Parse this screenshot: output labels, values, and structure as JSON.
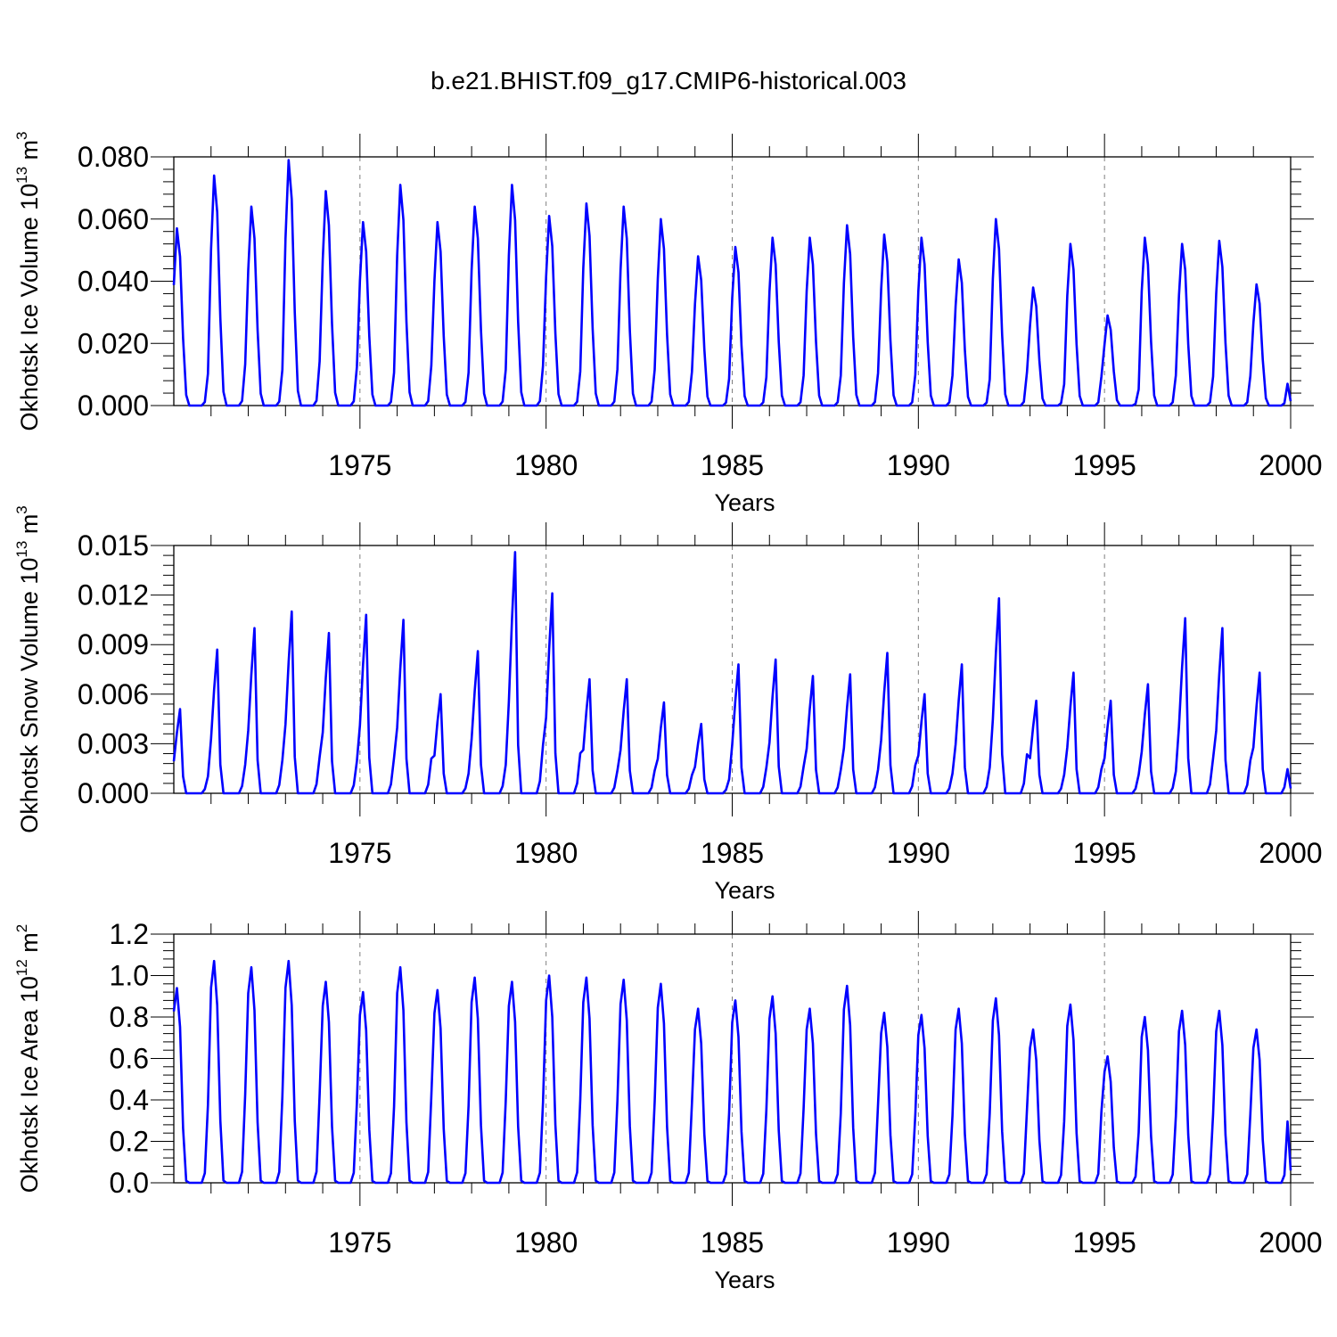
{
  "title": "b.e21.BHIST.f09_g17.CMIP6-historical.003",
  "colors": {
    "series": "#0000ff",
    "axis": "#000000",
    "grid": "#808080"
  },
  "chart_data": [
    {
      "type": "line",
      "ylabel_main": "Okhotsk Ice Volume 10",
      "ylabel_exp": "13",
      "ylabel_unit": " m",
      "ylabel_unit_exp": "3",
      "xlabel": "Years",
      "xlim": [
        1970,
        2000
      ],
      "ylim": [
        0,
        0.08
      ],
      "yticks": [
        0,
        0.02,
        0.04,
        0.06,
        0.08
      ],
      "ytick_labels": [
        "0.000",
        "0.020",
        "0.040",
        "0.060",
        "0.080"
      ],
      "xticks": [
        1975,
        1980,
        1985,
        1990,
        1995,
        2000
      ],
      "xtick_labels": [
        "1975",
        "1980",
        "1985",
        "1990",
        "1995",
        "2000"
      ],
      "start_year": 1970,
      "annual_peaks": [
        0.057,
        0.074,
        0.064,
        0.079,
        0.069,
        0.059,
        0.071,
        0.059,
        0.064,
        0.071,
        0.061,
        0.065,
        0.064,
        0.06,
        0.048,
        0.051,
        0.054,
        0.054,
        0.058,
        0.055,
        0.054,
        0.047,
        0.06,
        0.038,
        0.052,
        0.029,
        0.054,
        0.052,
        0.053,
        0.039
      ],
      "monthly_shape": [
        0.68,
        1.0,
        0.84,
        0.38,
        0.06,
        0.0,
        0.0,
        0.0,
        0.0,
        0.0,
        0.02,
        0.18
      ]
    },
    {
      "type": "line",
      "ylabel_main": "Okhotsk Snow Volume 10",
      "ylabel_exp": "13",
      "ylabel_unit": " m",
      "ylabel_unit_exp": "3",
      "xlabel": "Years",
      "xlim": [
        1970,
        2000
      ],
      "ylim": [
        0,
        0.015
      ],
      "yticks": [
        0,
        0.003,
        0.006,
        0.009,
        0.012,
        0.015
      ],
      "ytick_labels": [
        "0.000",
        "0.003",
        "0.006",
        "0.009",
        "0.012",
        "0.015"
      ],
      "xticks": [
        1975,
        1980,
        1985,
        1990,
        1995,
        2000
      ],
      "xtick_labels": [
        "1975",
        "1980",
        "1985",
        "1990",
        "1995",
        "2000"
      ],
      "start_year": 1970,
      "annual_peaks": [
        0.0051,
        0.0087,
        0.01,
        0.011,
        0.0097,
        0.0108,
        0.0105,
        0.006,
        0.0086,
        0.0146,
        0.0121,
        0.0069,
        0.0069,
        0.0055,
        0.0042,
        0.0078,
        0.0081,
        0.0071,
        0.0072,
        0.0085,
        0.006,
        0.0078,
        0.0118,
        0.0056,
        0.0073,
        0.0056,
        0.0066,
        0.0106,
        0.01,
        0.0073
      ],
      "monthly_shape": [
        0.38,
        0.72,
        1.0,
        0.2,
        0.0,
        0.0,
        0.0,
        0.0,
        0.0,
        0.0,
        0.05,
        0.2
      ]
    },
    {
      "type": "line",
      "ylabel_main": "Okhotsk Ice Area 10",
      "ylabel_exp": "12",
      "ylabel_unit": " m",
      "ylabel_unit_exp": "2",
      "xlabel": "Years",
      "xlim": [
        1970,
        2000
      ],
      "ylim": [
        0,
        1.2
      ],
      "yticks": [
        0,
        0.2,
        0.4,
        0.6,
        0.8,
        1.0,
        1.2
      ],
      "ytick_labels": [
        "0.0",
        "0.2",
        "0.4",
        "0.6",
        "0.8",
        "1.0",
        "1.2"
      ],
      "xticks": [
        1975,
        1980,
        1985,
        1990,
        1995,
        2000
      ],
      "xtick_labels": [
        "1975",
        "1980",
        "1985",
        "1990",
        "1995",
        "2000"
      ],
      "start_year": 1970,
      "annual_peaks": [
        0.94,
        1.07,
        1.04,
        1.07,
        0.97,
        0.92,
        1.04,
        0.93,
        0.99,
        0.97,
        1.0,
        0.99,
        0.98,
        0.96,
        0.84,
        0.88,
        0.9,
        0.84,
        0.95,
        0.82,
        0.81,
        0.84,
        0.89,
        0.74,
        0.86,
        0.61,
        0.8,
        0.83,
        0.83,
        0.74
      ],
      "monthly_shape": [
        0.88,
        1.0,
        0.8,
        0.28,
        0.01,
        0.0,
        0.0,
        0.0,
        0.0,
        0.0,
        0.05,
        0.4
      ]
    }
  ]
}
